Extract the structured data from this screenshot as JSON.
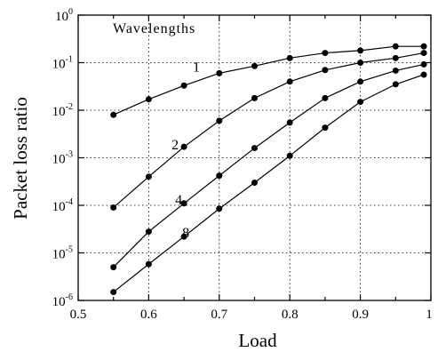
{
  "chart_data": {
    "type": "line",
    "title": "",
    "xlabel": "Load",
    "ylabel": "Packet loss ratio",
    "xlim": [
      0.5,
      1.0
    ],
    "ylim_log10": [
      -6,
      0
    ],
    "yscale": "log",
    "grid": true,
    "x_ticks": [
      "0.5",
      "0.6",
      "0.7",
      "0.8",
      "0.9",
      "1"
    ],
    "y_ticks": [
      {
        "base": "10",
        "exp": "0"
      },
      {
        "base": "10",
        "exp": "-1"
      },
      {
        "base": "10",
        "exp": "-2"
      },
      {
        "base": "10",
        "exp": "-3"
      },
      {
        "base": "10",
        "exp": "-4"
      },
      {
        "base": "10",
        "exp": "-5"
      },
      {
        "base": "10",
        "exp": "-6"
      }
    ],
    "annotation_title": "Wavelengths",
    "x": [
      0.55,
      0.6,
      0.65,
      0.7,
      0.75,
      0.8,
      0.85,
      0.9,
      0.95,
      0.99
    ],
    "series": [
      {
        "name": "1",
        "values": [
          0.008,
          0.017,
          0.033,
          0.06,
          0.085,
          0.125,
          0.16,
          0.18,
          0.22,
          0.22
        ]
      },
      {
        "name": "2",
        "values": [
          9e-05,
          0.0004,
          0.0017,
          0.006,
          0.018,
          0.04,
          0.07,
          0.1,
          0.125,
          0.16
        ]
      },
      {
        "name": "4",
        "values": [
          5e-06,
          2.8e-05,
          0.00011,
          0.00042,
          0.0016,
          0.0055,
          0.018,
          0.04,
          0.068,
          0.092
        ]
      },
      {
        "name": "8",
        "values": [
          1.5e-06,
          5.8e-06,
          2.2e-05,
          8.5e-05,
          0.0003,
          0.0011,
          0.0043,
          0.015,
          0.035,
          0.056
        ]
      }
    ]
  }
}
